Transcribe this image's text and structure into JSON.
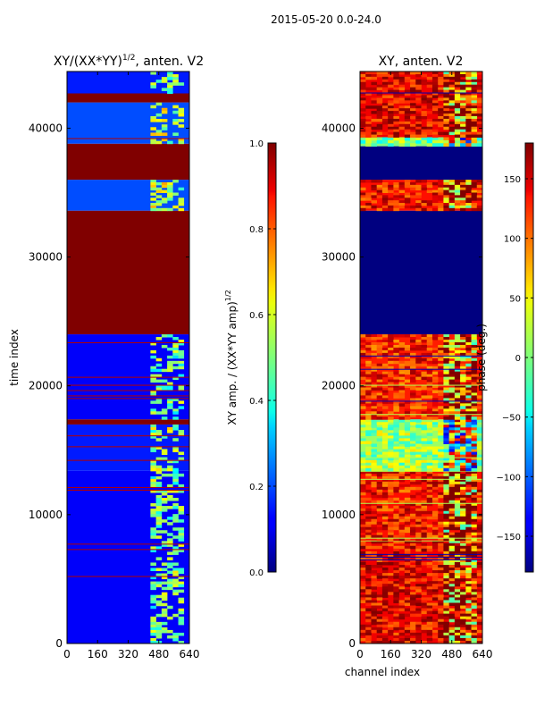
{
  "figure": {
    "suptitle": "2015-05-20 0.0-24.0",
    "colors": {
      "background": "#ffffff",
      "axis": "#000000",
      "saturated": "#800000",
      "floor": "#00008b"
    }
  },
  "chart_data": [
    {
      "type": "heatmap",
      "title": "XY/(XX*YY)^{1/2}, anten. V2",
      "title_main": "XY/(XX*YY)",
      "title_exp": "1/2",
      "title_rest": ", anten. V2",
      "xlabel": "",
      "ylabel": "time index",
      "xlim": [
        0,
        640
      ],
      "ylim": [
        0,
        44400
      ],
      "xticks": [
        0,
        160,
        320,
        480,
        640
      ],
      "yticks": [
        0,
        10000,
        20000,
        30000,
        40000
      ],
      "colormap": "jet",
      "colorbar": {
        "label": "XY amp. / (XX*YY amp)^{1/2}",
        "label_main": "XY amp. / (XX*YY amp)",
        "label_exp": "1/2",
        "range": [
          0.0,
          1.0
        ],
        "ticks": [
          "0.0",
          "0.2",
          "0.4",
          "0.6",
          "0.8",
          "1.0"
        ],
        "tick_values": [
          0.0,
          0.2,
          0.4,
          0.6,
          0.8,
          1.0
        ]
      },
      "bands": [
        {
          "t0": 0,
          "t1": 13400,
          "level": 0.12,
          "note": "low amplitude, bright speckle at channels 430-600"
        },
        {
          "t0": 13400,
          "t1": 17000,
          "level": 0.15,
          "note": "mixed, many red horizontal lines"
        },
        {
          "t0": 17000,
          "t1": 17400,
          "level": 1.0,
          "note": "saturated"
        },
        {
          "t0": 17400,
          "t1": 24000,
          "level": 0.12,
          "note": "low amplitude"
        },
        {
          "t0": 24000,
          "t1": 33600,
          "level": 1.0,
          "note": "saturated"
        },
        {
          "t0": 33600,
          "t1": 36000,
          "level": 0.2,
          "note": "structured, bright at channels 430-600"
        },
        {
          "t0": 36000,
          "t1": 38800,
          "level": 1.0,
          "note": "saturated"
        },
        {
          "t0": 38800,
          "t1": 42000,
          "level": 0.2,
          "note": "structured, red lines"
        },
        {
          "t0": 42000,
          "t1": 42700,
          "level": 1.0,
          "note": "saturated"
        },
        {
          "t0": 42700,
          "t1": 44400,
          "level": 0.15,
          "note": "low amplitude"
        }
      ]
    },
    {
      "type": "heatmap",
      "title": "XY, anten. V2",
      "xlabel": "channel index",
      "ylabel": "",
      "xlim": [
        0,
        640
      ],
      "ylim": [
        0,
        44400
      ],
      "xticks": [
        0,
        160,
        320,
        480,
        640
      ],
      "yticks": [
        0,
        10000,
        20000,
        30000,
        40000
      ],
      "colormap": "jet",
      "colorbar": {
        "label": "phase (deg.)",
        "range": [
          -180,
          180
        ],
        "ticks": [
          "−150",
          "−100",
          "−50",
          "0",
          "50",
          "100",
          "150"
        ],
        "tick_values": [
          -150,
          -100,
          -50,
          0,
          50,
          100,
          150
        ]
      },
      "bands": [
        {
          "t0": 0,
          "t1": 8000,
          "level_deg": 140,
          "note": "red/orange with blue patches, noisy at channels 450-640"
        },
        {
          "t0": 8000,
          "t1": 13400,
          "level_deg": 130,
          "note": "orange-red, noisy cyan/yellow at channels 430-640"
        },
        {
          "t0": 13400,
          "t1": 17400,
          "level_deg": 10,
          "note": "green/yellow lines"
        },
        {
          "t0": 17400,
          "t1": 24000,
          "level_deg": 125,
          "note": "orange, noisy at channels 430-640"
        },
        {
          "t0": 24000,
          "t1": 33600,
          "level_deg": -180,
          "note": "flat dark blue"
        },
        {
          "t0": 33600,
          "t1": 36000,
          "level_deg": 130,
          "note": "red/orange stripes with dark blue gaps"
        },
        {
          "t0": 36000,
          "t1": 38600,
          "level_deg": -180,
          "note": "flat dark blue"
        },
        {
          "t0": 38600,
          "t1": 39300,
          "level_deg": 0,
          "note": "cyan/green lines"
        },
        {
          "t0": 39300,
          "t1": 44400,
          "level_deg": 140,
          "note": "red/orange stripes with dark blue gaps"
        }
      ]
    }
  ]
}
